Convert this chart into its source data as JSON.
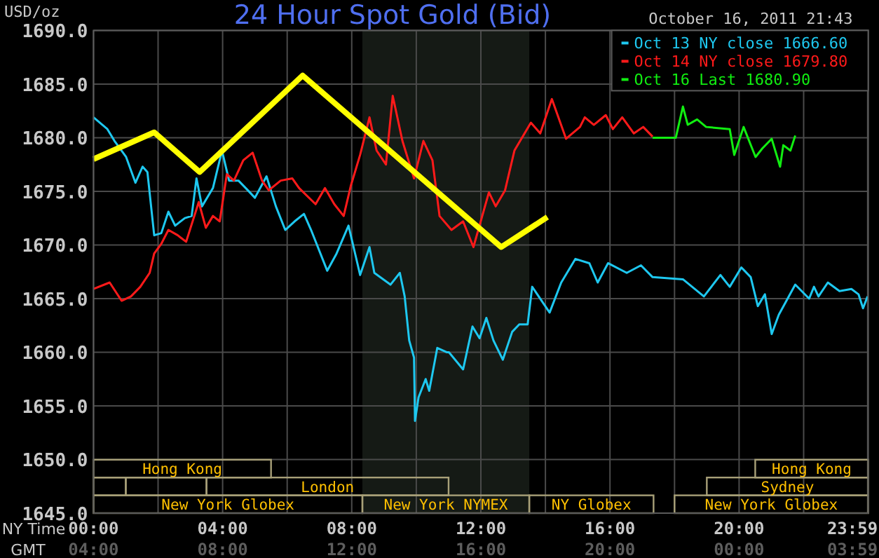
{
  "chart_data": {
    "type": "line",
    "title": "24 Hour Spot Gold (Bid)",
    "ylabel": "USD/oz",
    "xlabel": "NY Time",
    "x2label": "GMT",
    "annotations": [
      "October 16, 2011 21:43",
      "New York Globex",
      "New York NYMEX",
      "NY Globex",
      "New York Globex",
      "London",
      "Sydney",
      "Hong Kong",
      "Hong Kong"
    ],
    "xlim": [
      0,
      24
    ],
    "xticks": [
      {
        "value": 0,
        "label": "00:00"
      },
      {
        "value": 2,
        "label": null
      },
      {
        "value": 4,
        "label": "04:00"
      },
      {
        "value": 6,
        "label": null
      },
      {
        "value": 8,
        "label": "08:00"
      },
      {
        "value": 10,
        "label": null
      },
      {
        "value": 12,
        "label": "12:00"
      },
      {
        "value": 14,
        "label": null
      },
      {
        "value": 16,
        "label": "16:00"
      },
      {
        "value": 18,
        "label": null
      },
      {
        "value": 20,
        "label": "20:00"
      },
      {
        "value": 22,
        "label": null
      },
      {
        "value": 23.983,
        "label": "23:59"
      }
    ],
    "x2lim": [
      "2011-10-16T04:00",
      "2011-10-17T04:00"
    ],
    "x2ticks": [
      {
        "value": "2011-10-16T04:00",
        "label": "04:00"
      },
      {
        "value": "2011-10-16T08:00",
        "label": "08:00"
      },
      {
        "value": "2011-10-16T12:00",
        "label": "12:00"
      },
      {
        "value": "2011-10-16T16:00",
        "label": "16:00"
      },
      {
        "value": "2011-10-16T20:00",
        "label": "20:00"
      },
      {
        "value": "2011-10-17T00:00",
        "label": "00:00"
      },
      {
        "value": "2011-10-17T03:59",
        "label": "03:59"
      }
    ],
    "ylim": [
      1645,
      1690
    ],
    "yticks": [
      {
        "value": 1645,
        "label": "1645.0"
      },
      {
        "value": 1650,
        "label": "1650.0"
      },
      {
        "value": 1655,
        "label": "1655.0"
      },
      {
        "value": 1660,
        "label": "1660.0"
      },
      {
        "value": 1665,
        "label": "1665.0"
      },
      {
        "value": 1670,
        "label": "1670.0"
      },
      {
        "value": 1675,
        "label": "1675.0"
      },
      {
        "value": 1680,
        "label": "1680.0"
      },
      {
        "value": 1685,
        "label": "1685.0"
      },
      {
        "value": 1690,
        "label": "1690.0"
      }
    ],
    "grid": true,
    "legend": "top right",
    "bands": [
      {
        "axis": "x",
        "from": 8.33,
        "to": 13.5,
        "color": "#151a15"
      }
    ],
    "series": [
      {
        "name": "Oct 13 NY close 1666.60",
        "color": "#1ec8f0",
        "x": [
          0,
          0.43,
          0.65,
          1.01,
          1.3,
          1.52,
          1.67,
          1.88,
          2.1,
          2.32,
          2.53,
          2.83,
          3.04,
          3.19,
          3.36,
          3.7,
          3.98,
          4.2,
          4.49,
          4.78,
          5,
          5.36,
          5.65,
          5.94,
          6.23,
          6.52,
          6.74,
          7.24,
          7.53,
          7.9,
          8.26,
          8.55,
          8.7,
          9.2,
          9.49,
          9.64,
          9.78,
          9.93,
          9.96,
          10.07,
          10.29,
          10.4,
          10.65,
          10.94,
          11.01,
          11.45,
          11.74,
          11.96,
          12.17,
          12.39,
          12.68,
          12.97,
          13.19,
          13.45,
          13.59,
          14.13,
          14.49,
          14.93,
          15.36,
          15.62,
          15.94,
          16.52,
          16.96,
          17.32,
          18.26,
          18.91,
          19.42,
          19.71,
          20.07,
          20.36,
          20.58,
          20.8,
          21.01,
          21.23,
          21.74,
          22.17,
          22.32,
          22.46,
          22.75,
          23.11,
          23.48,
          23.7,
          23.84,
          23.98
        ],
        "values": [
          1681.9,
          1680.8,
          1679.7,
          1678.2,
          1675.8,
          1677.3,
          1676.8,
          1670.9,
          1671.1,
          1673.1,
          1671.8,
          1672.5,
          1672.7,
          1676.2,
          1673.6,
          1675.3,
          1678.8,
          1676,
          1676,
          1675.1,
          1674.4,
          1676.4,
          1673.6,
          1671.4,
          1672.2,
          1672.9,
          1671.4,
          1667.6,
          1669.2,
          1671.8,
          1667.2,
          1669.8,
          1667.4,
          1666.3,
          1667.4,
          1665.2,
          1661.1,
          1659.5,
          1653.6,
          1655.8,
          1657.5,
          1656.4,
          1660.4,
          1660,
          1660,
          1658.4,
          1662.4,
          1661.3,
          1663.2,
          1661.1,
          1659.3,
          1661.9,
          1662.6,
          1662.6,
          1666.1,
          1663.7,
          1666.5,
          1668.7,
          1668.3,
          1666.5,
          1668.3,
          1667.4,
          1668.1,
          1667,
          1666.8,
          1665.2,
          1667.2,
          1666.1,
          1667.9,
          1667,
          1664.3,
          1665.4,
          1661.7,
          1663.5,
          1666.3,
          1665,
          1666.1,
          1665.2,
          1666.5,
          1665.7,
          1665.9,
          1665.4,
          1664.1,
          1665.2
        ]
      },
      {
        "name": "Oct 14 NY close 1679.80",
        "color": "#ff1a1a",
        "x": [
          0,
          0.5,
          0.87,
          1.16,
          1.45,
          1.74,
          1.88,
          2.1,
          2.32,
          2.61,
          2.87,
          3.26,
          3.48,
          3.7,
          3.91,
          4.13,
          4.35,
          4.64,
          4.93,
          5.22,
          5.43,
          5.8,
          6.16,
          6.37,
          6.88,
          7.17,
          7.46,
          7.75,
          7.97,
          8.26,
          8.55,
          8.77,
          9.06,
          9.27,
          9.57,
          9.93,
          10.22,
          10.5,
          10.72,
          11.09,
          11.45,
          11.77,
          12.25,
          12.46,
          12.75,
          13.04,
          13.55,
          13.84,
          14.2,
          14.64,
          15.07,
          15.22,
          15.5,
          15.87,
          16.09,
          16.38,
          16.74,
          17.03,
          17.32
        ],
        "values": [
          1665.9,
          1666.5,
          1664.8,
          1665.2,
          1666.1,
          1667.4,
          1669.2,
          1670.1,
          1671.4,
          1670.9,
          1670.3,
          1674,
          1671.6,
          1672.7,
          1672.2,
          1676.6,
          1676,
          1677.9,
          1678.6,
          1676,
          1675.1,
          1676,
          1676.2,
          1675.3,
          1673.8,
          1675.3,
          1673.8,
          1672.7,
          1675.5,
          1678.4,
          1681.9,
          1678.8,
          1677.5,
          1683.9,
          1679.7,
          1676.2,
          1679.7,
          1677.9,
          1672.7,
          1671.4,
          1672.2,
          1669.8,
          1674.9,
          1673.6,
          1675.1,
          1678.8,
          1681.4,
          1680.4,
          1683.6,
          1679.9,
          1681,
          1681.9,
          1681.2,
          1682.1,
          1680.8,
          1681.9,
          1680.4,
          1681,
          1680.1
        ]
      },
      {
        "name": "Oct 16 Last 1680.90",
        "color": "#11ee11",
        "x": [
          17.32,
          18.04,
          18.26,
          18.41,
          18.7,
          18.98,
          19.71,
          19.85,
          20.14,
          20.51,
          20.72,
          21.01,
          21.27,
          21.37,
          21.59,
          21.74
        ],
        "values": [
          1680,
          1680,
          1682.9,
          1681.2,
          1681.7,
          1681,
          1680.8,
          1678.4,
          1681,
          1678.2,
          1679,
          1679.9,
          1677.3,
          1679.3,
          1678.8,
          1680.2
        ]
      },
      {
        "color": "#ffff00",
        "x": [
          0,
          1.88,
          3.29,
          6.48,
          12.63,
          14.06
        ],
        "values": [
          1678,
          1680.5,
          1676.8,
          1685.8,
          1669.8,
          1672.6
        ]
      }
    ]
  }
}
